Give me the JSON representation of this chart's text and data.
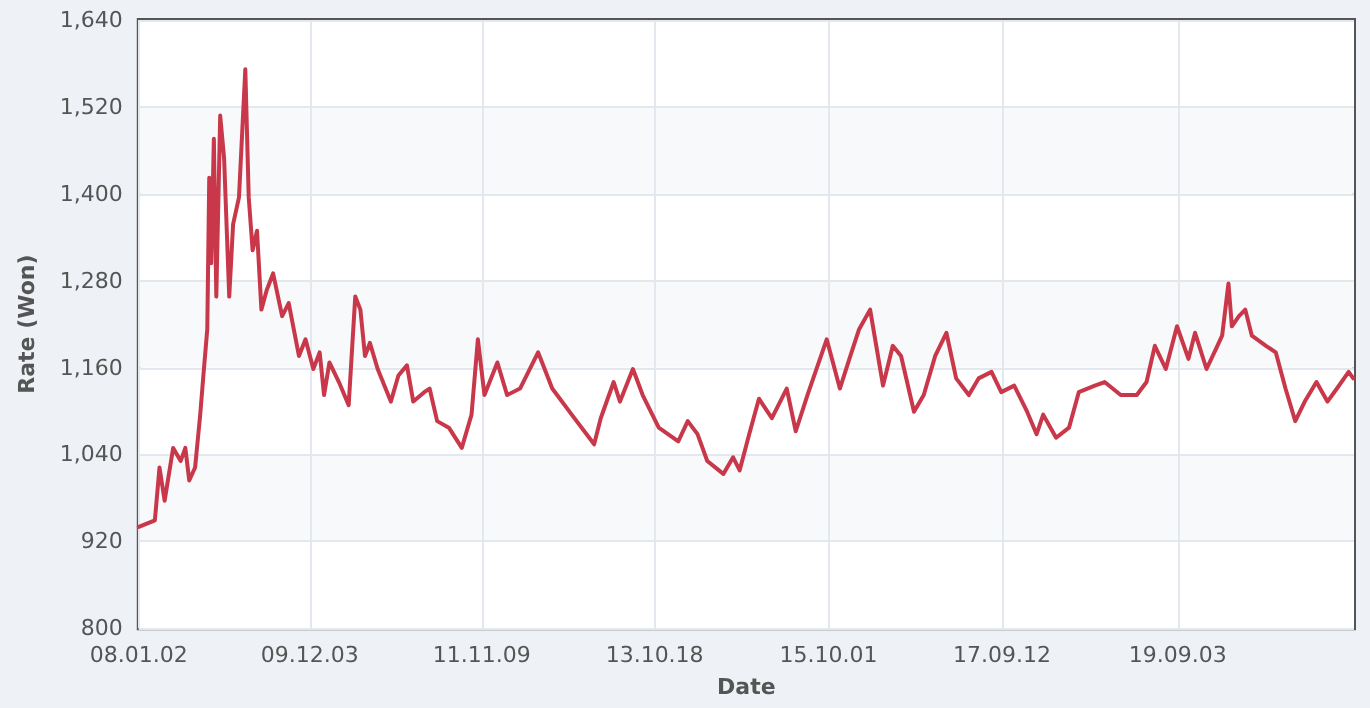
{
  "chart_data": {
    "type": "line",
    "xlabel": "Date",
    "ylabel": "Rate (Won)",
    "xlim": [
      "2008-01-02",
      "2021-08-26"
    ],
    "xticks": [
      {
        "value": "2008-01-02",
        "label": "08.01.02"
      },
      {
        "value": "2009-12-03",
        "label": "09.12.03"
      },
      {
        "value": "2011-11-09",
        "label": "11.11.09"
      },
      {
        "value": "2013-10-18",
        "label": "13.10.18"
      },
      {
        "value": "2015-10-01",
        "label": "15.10.01"
      },
      {
        "value": "2017-09-12",
        "label": "17.09.12"
      },
      {
        "value": "2019-09-03",
        "label": "19.09.03"
      }
    ],
    "ylim": [
      800,
      1640
    ],
    "yticks": [
      {
        "value": 800,
        "label": "800"
      },
      {
        "value": 920,
        "label": "920"
      },
      {
        "value": 1040,
        "label": "1,040"
      },
      {
        "value": 1160,
        "label": "1,160"
      },
      {
        "value": 1280,
        "label": "1,280"
      },
      {
        "value": 1400,
        "label": "1,400"
      },
      {
        "value": 1520,
        "label": "1,520"
      },
      {
        "value": 1640,
        "label": "1,640"
      }
    ],
    "grid": true,
    "marker": "none",
    "line_style": "solid",
    "series": [
      {
        "color": "#c8384a",
        "x": [
          "2008-01-02",
          "2008-03-08",
          "2008-03-27",
          "2008-04-17",
          "2008-05-22",
          "2008-06-22",
          "2008-07-11",
          "2008-07-27",
          "2008-08-20",
          "2008-09-10",
          "2008-09-23",
          "2008-10-09",
          "2008-10-17",
          "2008-10-25",
          "2008-11-05",
          "2008-11-15",
          "2008-12-01",
          "2008-12-17",
          "2009-01-07",
          "2009-01-23",
          "2009-02-16",
          "2009-03-14",
          "2009-03-28",
          "2009-04-13",
          "2009-05-01",
          "2009-05-19",
          "2009-06-10",
          "2009-07-06",
          "2009-08-12",
          "2009-09-08",
          "2009-10-20",
          "2009-11-16",
          "2009-12-18",
          "2010-01-13",
          "2010-01-31",
          "2010-02-22",
          "2010-04-02",
          "2010-05-12",
          "2010-06-08",
          "2010-06-29",
          "2010-07-18",
          "2010-08-07",
          "2010-09-08",
          "2010-11-01",
          "2010-12-02",
          "2011-01-06",
          "2011-02-01",
          "2011-03-18",
          "2011-04-09",
          "2011-05-10",
          "2011-06-27",
          "2011-08-19",
          "2011-09-28",
          "2011-10-24",
          "2011-11-20",
          "2012-01-12",
          "2012-02-21",
          "2012-04-14",
          "2012-06-27",
          "2012-08-24",
          "2012-11-12",
          "2013-02-12",
          "2013-03-11",
          "2013-05-03",
          "2013-05-29",
          "2013-07-21",
          "2013-08-30",
          "2013-11-04",
          "2014-01-23",
          "2014-03-03",
          "2014-04-12",
          "2014-05-22",
          "2014-07-09",
          "2014-07-27",
          "2014-09-05",
          "2014-10-02",
          "2014-11-10",
          "2014-12-20",
          "2015-02-11",
          "2015-04-13",
          "2015-05-20",
          "2015-07-07",
          "2015-09-24",
          "2015-11-17",
          "2015-12-26",
          "2016-02-04",
          "2016-03-20",
          "2016-05-12",
          "2016-06-21",
          "2016-07-25",
          "2016-09-16",
          "2016-10-26",
          "2016-12-12",
          "2017-01-27",
          "2017-03-08",
          "2017-04-29",
          "2017-06-08",
          "2017-07-31",
          "2017-09-09",
          "2017-11-01",
          "2017-12-24",
          "2018-02-01",
          "2018-02-28",
          "2018-04-22",
          "2018-06-14",
          "2018-07-24",
          "2018-09-28",
          "2018-11-07",
          "2019-01-12",
          "2019-03-19",
          "2019-04-28",
          "2019-06-01",
          "2019-07-16",
          "2019-08-31",
          "2019-10-17",
          "2019-11-13",
          "2019-12-30",
          "2020-02-06",
          "2020-03-03",
          "2020-03-29",
          "2020-04-12",
          "2020-05-11",
          "2020-06-06",
          "2020-07-03",
          "2020-08-30",
          "2020-10-09",
          "2020-11-18",
          "2020-12-28",
          "2021-02-05",
          "2021-03-25",
          "2021-05-09",
          "2021-06-17",
          "2021-08-04",
          "2021-08-23"
        ],
        "values": [
          940,
          949,
          1022,
          976,
          1049,
          1031,
          1049,
          1004,
          1022,
          1095,
          1149,
          1213,
          1422,
          1304,
          1476,
          1258,
          1508,
          1449,
          1258,
          1358,
          1395,
          1572,
          1395,
          1322,
          1349,
          1240,
          1267,
          1290,
          1231,
          1249,
          1176,
          1199,
          1158,
          1181,
          1122,
          1167,
          1140,
          1108,
          1258,
          1240,
          1176,
          1194,
          1158,
          1113,
          1149,
          1163,
          1113,
          1126,
          1131,
          1086,
          1077,
          1049,
          1095,
          1199,
          1122,
          1167,
          1122,
          1131,
          1181,
          1131,
          1095,
          1054,
          1090,
          1140,
          1113,
          1158,
          1122,
          1077,
          1058,
          1086,
          1068,
          1031,
          1018,
          1013,
          1036,
          1018,
          1068,
          1117,
          1090,
          1131,
          1072,
          1122,
          1199,
          1131,
          1172,
          1213,
          1240,
          1135,
          1190,
          1176,
          1099,
          1122,
          1176,
          1208,
          1145,
          1122,
          1145,
          1154,
          1126,
          1135,
          1099,
          1068,
          1095,
          1063,
          1077,
          1126,
          1135,
          1140,
          1122,
          1122,
          1140,
          1190,
          1158,
          1217,
          1172,
          1208,
          1158,
          1185,
          1204,
          1276,
          1217,
          1231,
          1240,
          1204,
          1190,
          1181,
          1131,
          1086,
          1113,
          1140,
          1113,
          1131,
          1154,
          1145
        ]
      }
    ]
  }
}
